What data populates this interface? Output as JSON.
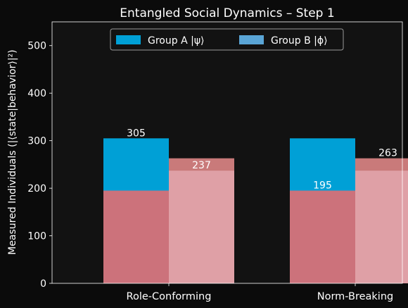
{
  "chart_data": {
    "type": "bar",
    "title": "Entangled Social Dynamics – Step 1",
    "xlabel": "",
    "ylabel": "Measured Individuals (|⟨state|behavior⟩|²)",
    "ylim": [
      0,
      550
    ],
    "yticks": [
      0,
      100,
      200,
      300,
      400,
      500
    ],
    "categories": [
      "Role-Conforming",
      "Norm-Breaking"
    ],
    "series": [
      {
        "name": "Group A |ψ⟩",
        "color": "#00a0d6",
        "values": [
          305,
          305
        ],
        "overlay": [
          195,
          195
        ],
        "overlay_color": "#cc727b"
      },
      {
        "name": "Group B |ϕ⟩",
        "color": "#5aa5d6",
        "values": [
          263,
          263
        ],
        "bar_color": "#c97a7a",
        "overlay": [
          237,
          237
        ],
        "overlay_color": "#dfa0a6"
      }
    ],
    "data_labels": [
      {
        "category": "Role-Conforming",
        "series": "Group A |ψ⟩",
        "text": "305",
        "value": 305
      },
      {
        "category": "Role-Conforming",
        "series": "Group B |ϕ⟩",
        "text": "237",
        "value": 237
      },
      {
        "category": "Norm-Breaking",
        "series": "Group A |ψ⟩",
        "text": "195",
        "value": 195
      },
      {
        "category": "Norm-Breaking",
        "series": "Group B |ϕ⟩",
        "text": "263",
        "value": 263
      }
    ],
    "legend": {
      "placement": "top-center",
      "columns": 2
    },
    "grid": false,
    "background": "#121212",
    "figure_background": "#0b0b0b"
  }
}
